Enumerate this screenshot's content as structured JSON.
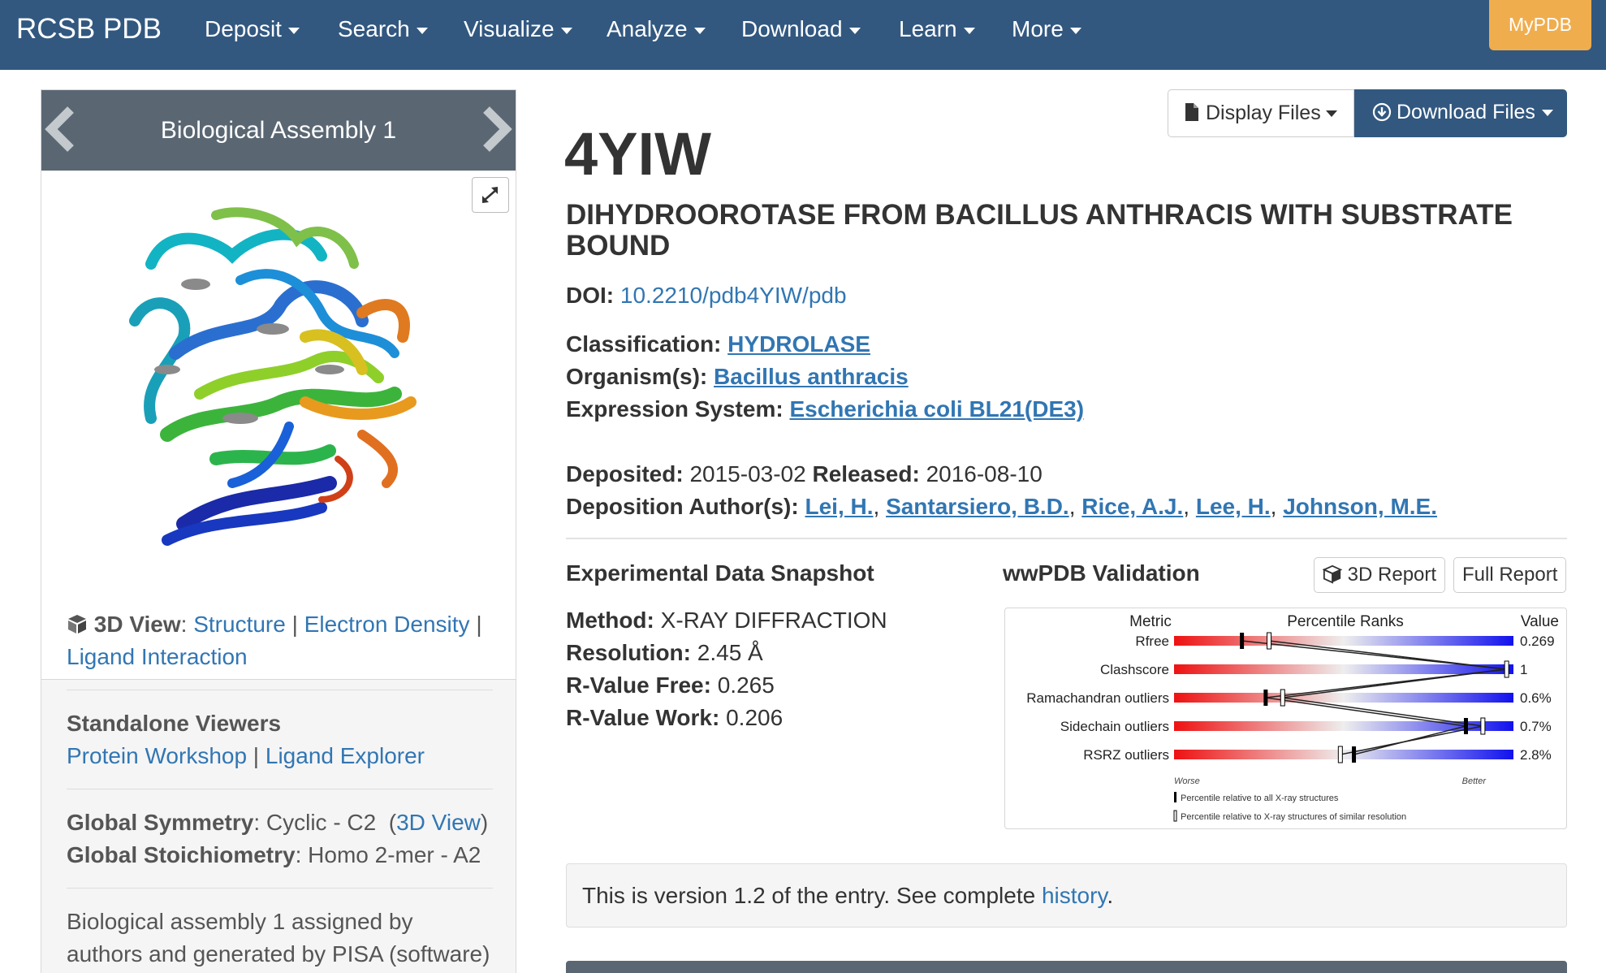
{
  "nav": {
    "brand": "RCSB PDB",
    "items": [
      "Deposit",
      "Search",
      "Visualize",
      "Analyze",
      "Download",
      "Learn",
      "More"
    ],
    "mypdb": "MyPDB"
  },
  "assembly": {
    "title": "Biological Assembly 1",
    "view3d": {
      "label": "3D View",
      "links": [
        "Structure",
        "Electron Density",
        "Ligand Interaction"
      ]
    },
    "standalone": {
      "title": "Standalone Viewers",
      "links": [
        "Protein Workshop",
        "Ligand Explorer"
      ]
    },
    "symmetry": {
      "label": "Global Symmetry",
      "value": "Cyclic - C2",
      "link": "3D View"
    },
    "stoichiometry": {
      "label": "Global Stoichiometry",
      "value": "Homo 2-mer - A2"
    },
    "note": "Biological assembly 1 assigned by authors and generated by PISA (software)"
  },
  "actions": {
    "display_files": "Display Files",
    "download_files": "Download Files"
  },
  "entry": {
    "id": "4YIW",
    "title": "DIHYDROOROTASE FROM BACILLUS ANTHRACIS WITH SUBSTRATE BOUND",
    "doi_label": "DOI:",
    "doi": "10.2210/pdb4YIW/pdb",
    "classification_label": "Classification:",
    "classification": "HYDROLASE",
    "organism_label": "Organism(s):",
    "organism": "Bacillus anthracis",
    "expression_label": "Expression System:",
    "expression": "Escherichia coli BL21(DE3)",
    "deposited_label": "Deposited:",
    "deposited": "2015-03-02",
    "released_label": "Released:",
    "released": "2016-08-10",
    "authors_label": "Deposition Author(s):",
    "authors": [
      "Lei, H.",
      "Santarsiero, B.D.",
      "Rice, A.J.",
      "Lee, H.",
      "Johnson, M.E."
    ]
  },
  "experimental": {
    "title": "Experimental Data Snapshot",
    "rows": [
      {
        "label": "Method:",
        "value": "X-RAY DIFFRACTION"
      },
      {
        "label": "Resolution:",
        "value": "2.45 Å"
      },
      {
        "label": "R-Value Free:",
        "value": "0.265"
      },
      {
        "label": "R-Value Work:",
        "value": "0.206"
      }
    ]
  },
  "validation": {
    "title": "wwPDB Validation",
    "report3d": "3D Report",
    "full_report": "Full Report",
    "header_metric": "Metric",
    "header_ranks": "Percentile Ranks",
    "header_value": "Value",
    "worse": "Worse",
    "better": "Better",
    "legend_all": "Percentile relative to all X-ray structures",
    "legend_similar": "Percentile relative to X-ray structures of similar resolution",
    "metrics": [
      {
        "name": "Rfree",
        "value": "0.269",
        "pct_all": 20,
        "pct_similar": 28
      },
      {
        "name": "Clashscore",
        "value": "1",
        "pct_all": 98,
        "pct_similar": 98
      },
      {
        "name": "Ramachandran outliers",
        "value": "0.6%",
        "pct_all": 27,
        "pct_similar": 32
      },
      {
        "name": "Sidechain outliers",
        "value": "0.7%",
        "pct_all": 86,
        "pct_similar": 91
      },
      {
        "name": "RSRZ outliers",
        "value": "2.8%",
        "pct_all": 53,
        "pct_similar": 49
      }
    ]
  },
  "version": {
    "text": "This is version 1.2 of the entry. See complete",
    "link": "history",
    "end": "."
  }
}
